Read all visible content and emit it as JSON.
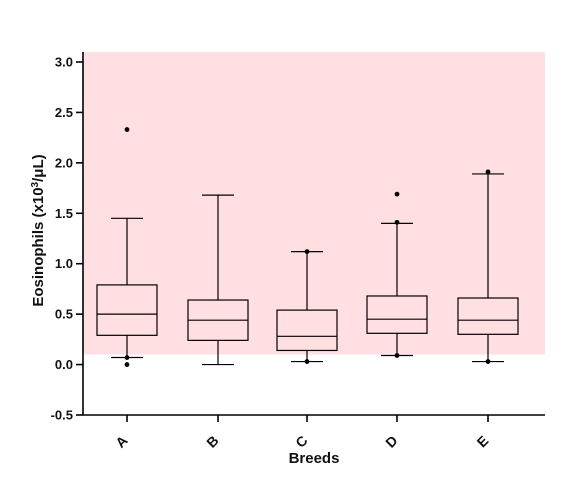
{
  "chart_data": {
    "type": "box",
    "title": "",
    "xlabel": "Breeds",
    "ylabel_parts": {
      "before": "Eosinophils (x10",
      "sup": "3",
      "after": "/μL)"
    },
    "ylim": [
      -0.5,
      3.1
    ],
    "yticks": [
      "-0.5",
      "0.0",
      "0.5",
      "1.0",
      "1.5",
      "2.0",
      "2.5",
      "3.0"
    ],
    "reference_interval": [
      0.1,
      3.1
    ],
    "reference_color": "#ffdfe1",
    "categories": [
      "A",
      "B",
      "C",
      "D",
      "E"
    ],
    "boxes": [
      {
        "category": "A",
        "min": 0.07,
        "q1": 0.29,
        "median": 0.5,
        "q3": 0.79,
        "max": 1.45,
        "outliers": [
          2.33,
          0.07,
          0.0
        ]
      },
      {
        "category": "B",
        "min": 0.0,
        "q1": 0.24,
        "median": 0.44,
        "q3": 0.64,
        "max": 1.68,
        "outliers": []
      },
      {
        "category": "C",
        "min": 0.03,
        "q1": 0.14,
        "median": 0.28,
        "q3": 0.54,
        "max": 1.12,
        "outliers": [
          1.12,
          0.03
        ]
      },
      {
        "category": "D",
        "min": 0.09,
        "q1": 0.31,
        "median": 0.45,
        "q3": 0.68,
        "max": 1.4,
        "outliers": [
          1.69,
          1.41,
          0.09
        ]
      },
      {
        "category": "E",
        "min": 0.03,
        "q1": 0.3,
        "median": 0.44,
        "q3": 0.66,
        "max": 1.89,
        "outliers": [
          1.91,
          0.03
        ]
      }
    ]
  }
}
